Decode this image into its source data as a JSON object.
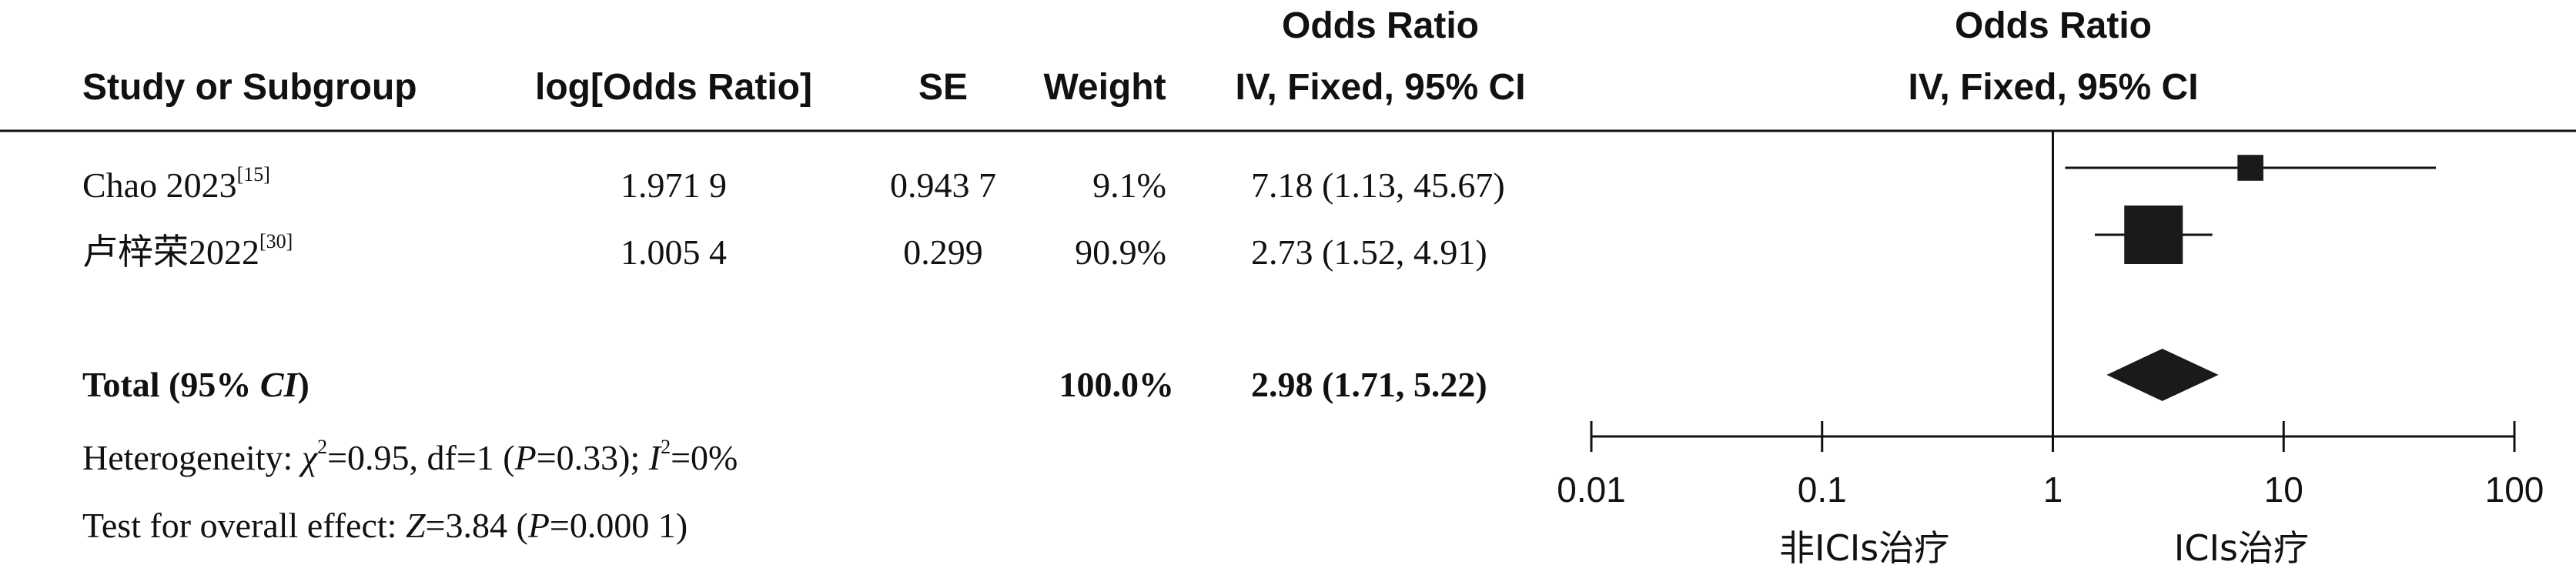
{
  "header": {
    "col_study": "Study or Subgroup",
    "col_logor": "log[Odds Ratio]",
    "col_se": "SE",
    "col_weight": "Weight",
    "col_or_title": "Odds Ratio",
    "col_or_method": "IV, Fixed, 95% CI",
    "plot_title": "Odds Ratio",
    "plot_method": "IV, Fixed, 95% CI"
  },
  "studies": [
    {
      "name": "Chao 2023",
      "ref": "[15]",
      "logor": "1.971 9",
      "se": "0.943 7",
      "weight": "9.1%",
      "ci_text": "7.18 (1.13, 45.67)"
    },
    {
      "name": "卢梓荣2022",
      "ref": "[30]",
      "logor": "1.005 4",
      "se": "0.299",
      "weight": "90.9%",
      "ci_text": "2.73 (1.52, 4.91)"
    }
  ],
  "total": {
    "label": "Total (95% ",
    "label_ci": "CI",
    "label_close": ")",
    "weight": "100.0%",
    "ci_text": "2.98 (1.71, 5.22)"
  },
  "heterogeneity": {
    "prefix": "Heterogeneity: ",
    "chi": "χ",
    "chi_sup": "2",
    "mid": "=0.95, df=1 (",
    "p": "P",
    "p_val": "=0.33); ",
    "i": "I",
    "i_sup": "2",
    "i_val": "=0%"
  },
  "overall": {
    "prefix": "Test for overall effect: ",
    "z": "Z",
    "z_val": "=3.84 (",
    "p": "P",
    "p_val": "=0.000 1)"
  },
  "chart_data": {
    "type": "forest",
    "scale": "log10",
    "xlim": [
      0.01,
      100
    ],
    "ticks": [
      0.01,
      0.1,
      1,
      10,
      100
    ],
    "tick_labels": [
      "0.01",
      "0.1",
      "1",
      "10",
      "100"
    ],
    "reference_line": 1,
    "left_label": "非ICIs治疗",
    "right_label": "ICIs治疗",
    "studies": [
      {
        "name": "Chao 2023",
        "or": 7.18,
        "lower": 1.13,
        "upper": 45.67,
        "weight": 9.1
      },
      {
        "name": "卢梓荣2022",
        "or": 2.73,
        "lower": 1.52,
        "upper": 4.91,
        "weight": 90.9
      }
    ],
    "total": {
      "or": 2.98,
      "lower": 1.71,
      "upper": 5.22
    },
    "marker_color": "#1a1a1a"
  }
}
